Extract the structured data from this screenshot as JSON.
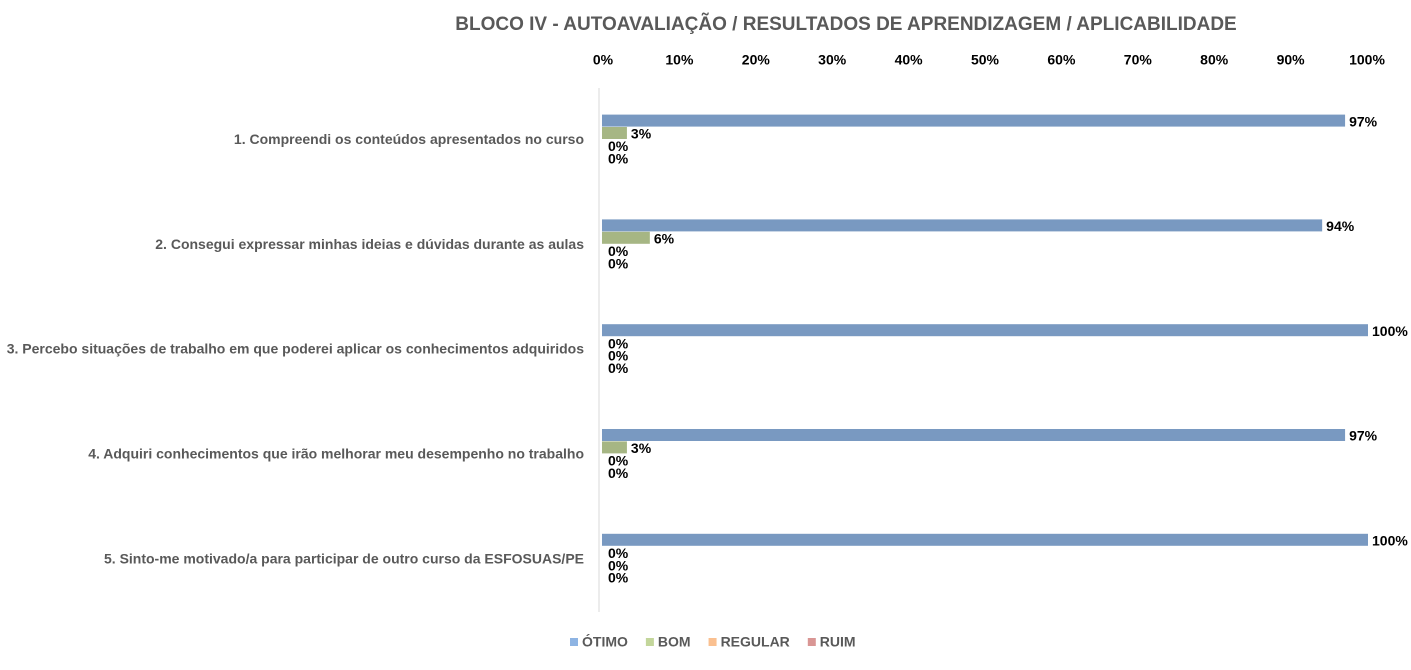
{
  "chart_data": {
    "type": "hbar",
    "title": "BLOCO IV - AUTOAVALIAÇÃO / RESULTADOS DE APRENDIZAGEM / APLICABILIDADE",
    "categories": [
      "1. Compreendi os conteúdos apresentados no curso",
      "2. Consegui expressar minhas ideias e dúvidas durante as aulas",
      "3. Percebo situações de trabalho em que poderei aplicar os conhecimentos adquiridos",
      "4. Adquiri conhecimentos que irão melhorar meu desempenho no trabalho",
      "5. Sinto-me motivado/a para participar de outro curso da ESFOSUAS/PE"
    ],
    "series": [
      {
        "name": "ÓTIMO",
        "color": "#8eb4e3",
        "values": [
          97,
          94,
          100,
          97,
          100
        ],
        "value_labels": [
          "97%",
          "94%",
          "100%",
          "97%",
          "100%"
        ]
      },
      {
        "name": "BOM",
        "color": "#c3d69b",
        "values": [
          3,
          6,
          0,
          3,
          0
        ],
        "value_labels": [
          "3%",
          "6%",
          "0%",
          "3%",
          "0%"
        ]
      },
      {
        "name": "REGULAR",
        "color": "#fac090",
        "values": [
          0,
          0,
          0,
          0,
          0
        ],
        "value_labels": [
          "0%",
          "0%",
          "0%",
          "0%",
          "0%"
        ]
      },
      {
        "name": "RUIM",
        "color": "#d99694",
        "values": [
          0,
          0,
          0,
          0,
          0
        ],
        "value_labels": [
          "0%",
          "0%",
          "0%",
          "0%",
          "0%"
        ]
      }
    ],
    "xlim": [
      0,
      100
    ],
    "xticks": [
      {
        "value": 0,
        "label": "0%"
      },
      {
        "value": 10,
        "label": "10%"
      },
      {
        "value": 20,
        "label": "20%"
      },
      {
        "value": 30,
        "label": "30%"
      },
      {
        "value": 40,
        "label": "40%"
      },
      {
        "value": 50,
        "label": "50%"
      },
      {
        "value": 60,
        "label": "60%"
      },
      {
        "value": 70,
        "label": "70%"
      },
      {
        "value": 80,
        "label": "80%"
      },
      {
        "value": 90,
        "label": "90%"
      },
      {
        "value": 100,
        "label": "100%"
      }
    ],
    "legend": "bottom"
  }
}
